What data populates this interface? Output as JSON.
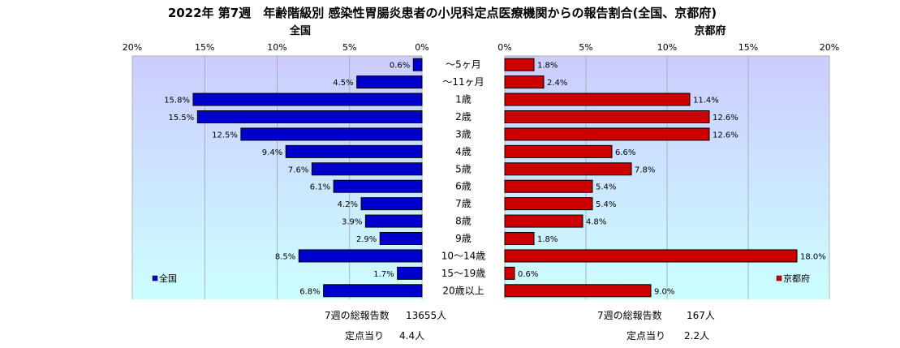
{
  "chart_data": {
    "type": "bar",
    "title": "2022年 第7週　年齢階級別 感染性胃腸炎患者の小児科定点医療機関からの報告割合(全国、京都府)",
    "categories": [
      "～5ヶ月",
      "～11ヶ月",
      "1歳",
      "2歳",
      "3歳",
      "4歳",
      "5歳",
      "6歳",
      "7歳",
      "8歳",
      "9歳",
      "10～14歳",
      "15～19歳",
      "20歳以上"
    ],
    "x_ticks": [
      "20%",
      "15%",
      "10%",
      "5%",
      "0%"
    ],
    "x_ticks_right": [
      "0%",
      "5%",
      "10%",
      "15%",
      "20%"
    ],
    "xlim": [
      0,
      20
    ],
    "grid": true,
    "series": [
      {
        "name": "全国",
        "subtitle": "全国",
        "color": "#0000cc",
        "values": [
          0.6,
          4.5,
          15.8,
          15.5,
          12.5,
          9.4,
          7.6,
          6.1,
          4.2,
          3.9,
          2.9,
          8.5,
          1.7,
          6.8
        ],
        "labels": [
          "0.6%",
          "4.5%",
          "15.8%",
          "15.5%",
          "12.5%",
          "9.4%",
          "7.6%",
          "6.1%",
          "4.2%",
          "3.9%",
          "2.9%",
          "8.5%",
          "1.7%",
          "6.8%"
        ],
        "legend": "全国",
        "legend_position": "bottom-left",
        "footer_total_label": "7週の総報告数",
        "footer_total_value": "13655人",
        "footer_per_label": "定点当り",
        "footer_per_value": "4.4人"
      },
      {
        "name": "京都府",
        "subtitle": "京都府",
        "color": "#cc0000",
        "values": [
          1.8,
          2.4,
          11.4,
          12.6,
          12.6,
          6.6,
          7.8,
          5.4,
          5.4,
          4.8,
          1.8,
          18.0,
          0.6,
          9.0
        ],
        "labels": [
          "1.8%",
          "2.4%",
          "11.4%",
          "12.6%",
          "12.6%",
          "6.6%",
          "7.8%",
          "5.4%",
          "5.4%",
          "4.8%",
          "1.8%",
          "18.0%",
          "0.6%",
          "9.0%"
        ],
        "legend": "京都府",
        "legend_position": "bottom-right",
        "footer_total_label": "7週の総報告数",
        "footer_total_value": "167人",
        "footer_per_label": "定点当り",
        "footer_per_value": "2.2人"
      }
    ],
    "colors": {
      "plot_bg_top": "#ccccff",
      "plot_bg_bottom": "#ccffff",
      "grid": "#999999",
      "bar_border": "#000000"
    }
  }
}
